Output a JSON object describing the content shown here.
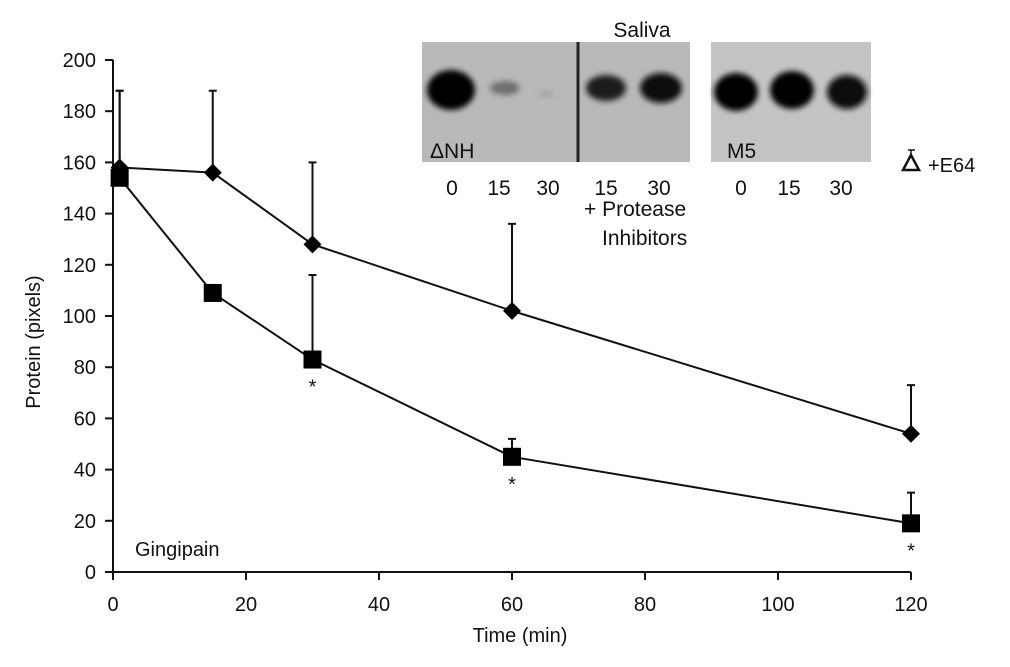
{
  "chart_data": {
    "type": "line",
    "xlabel": "Time (min)",
    "ylabel": "Protein (pixels)",
    "xlim": [
      0,
      120
    ],
    "ylim": [
      0,
      200
    ],
    "x_ticks": [
      0,
      20,
      40,
      60,
      80,
      100,
      120
    ],
    "y_ticks": [
      0,
      20,
      40,
      60,
      80,
      100,
      120,
      140,
      160,
      180,
      200
    ],
    "grid": false,
    "series": [
      {
        "marker": "diamond",
        "x": [
          1,
          15,
          30,
          60,
          120
        ],
        "y": [
          158,
          156,
          128,
          102,
          54
        ],
        "error_upper": [
          188,
          188,
          160,
          136,
          73
        ]
      },
      {
        "marker": "square",
        "x": [
          1,
          15,
          30,
          60,
          120
        ],
        "y": [
          154,
          109,
          83,
          45,
          19
        ],
        "error_upper": [
          188,
          109,
          116,
          52,
          31
        ],
        "significance": [
          null,
          null,
          "*",
          "*",
          "*"
        ]
      }
    ],
    "annotations": {
      "gingipain": "Gingipain",
      "open_triangle": "+E64"
    },
    "inset": {
      "title": "Saliva",
      "left_blot_label": "ΔNH",
      "right_blot_label": "M5",
      "left_lanes": [
        "0",
        "15",
        "30",
        "15",
        "30"
      ],
      "right_lanes": [
        "0",
        "15",
        "30"
      ],
      "inhibitor_note_line1": "+ Protease",
      "inhibitor_note_line2": "Inhibitors"
    }
  }
}
